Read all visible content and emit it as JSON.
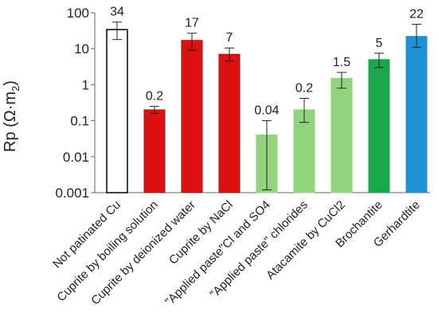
{
  "chart_data": {
    "type": "bar",
    "title": "",
    "xlabel": "",
    "ylabel": "Rp (Ω·m",
    "ylabel_sub": "2",
    "ylabel_close": ")",
    "yscale": "log",
    "ylim": [
      0.001,
      100
    ],
    "yticks": [
      "0.001",
      "0.01",
      "0.1",
      "1",
      "10",
      "100"
    ],
    "grid": false,
    "categories": [
      "Not patinated Cu",
      "Cuprite by boiling solution",
      "Cuprite by deionized water",
      "Cuprite by NaCl",
      "\"Applied paste\"Cl and SO4",
      "\"Applied paste\" chlorides",
      "Atacamite by CuCl2",
      "Brochantite",
      "Gerhardtite"
    ],
    "values": [
      34,
      0.2,
      17,
      7,
      0.04,
      0.2,
      1.5,
      5,
      22
    ],
    "data_labels": [
      "34",
      "0.2",
      "17",
      "7",
      "0.04",
      "0.2",
      "1.5",
      "5",
      "22"
    ],
    "error_low": [
      18,
      0.16,
      9,
      4.5,
      0.0012,
      0.09,
      0.8,
      3,
      11
    ],
    "error_high": [
      55,
      0.25,
      27,
      10.5,
      0.1,
      0.42,
      2.2,
      7.5,
      48
    ],
    "colors": [
      "#ffffff",
      "#dd1111",
      "#dd1111",
      "#dd1111",
      "#92d37e",
      "#92d37e",
      "#92d37e",
      "#1aa64a",
      "#1f8fd6"
    ],
    "border_colors": [
      "#000000",
      "#8a1a10",
      "#8a1a10",
      "#8a1a10",
      "#92d37e",
      "#92d37e",
      "#92d37e",
      "#1aa64a",
      "#1f8fd6"
    ]
  }
}
